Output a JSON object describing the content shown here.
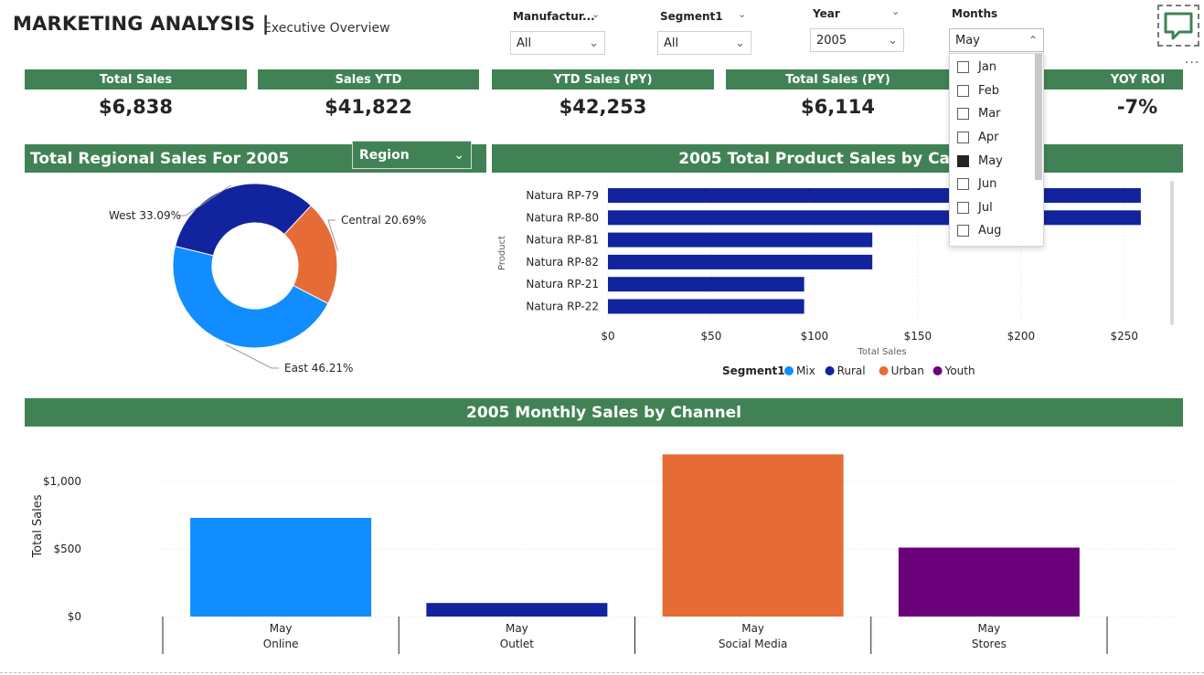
{
  "header": {
    "title": "MARKETING ANALYSIS |",
    "subtitle": "Executive Overview"
  },
  "slicers": {
    "manufacturer": {
      "label": "Manufactur...",
      "value": "All"
    },
    "segment": {
      "label": "Segment1",
      "value": "All"
    },
    "year": {
      "label": "Year",
      "value": "2005"
    },
    "months": {
      "label": "Months",
      "value": "May",
      "options": [
        {
          "label": "Jan",
          "checked": false
        },
        {
          "label": "Feb",
          "checked": false
        },
        {
          "label": "Mar",
          "checked": false
        },
        {
          "label": "Apr",
          "checked": false
        },
        {
          "label": "May",
          "checked": true
        },
        {
          "label": "Jun",
          "checked": false
        },
        {
          "label": "Jul",
          "checked": false
        },
        {
          "label": "Aug",
          "checked": false
        }
      ]
    }
  },
  "kpis": [
    {
      "label": "Total Sales",
      "value": "$6,838"
    },
    {
      "label": "Sales YTD",
      "value": "$41,822"
    },
    {
      "label": "YTD Sales (PY)",
      "value": "$42,253"
    },
    {
      "label": "Total Sales (PY)",
      "value": "$6,114"
    },
    {
      "label": "YOY ROI",
      "value": "-7%"
    }
  ],
  "regional": {
    "title": "Total Regional Sales For 2005",
    "dropdown": "Region"
  },
  "product": {
    "title": "2005 Total Product Sales by Cate"
  },
  "channel": {
    "title": "2005 Monthly Sales by Channel"
  },
  "more_options_label": "...",
  "colors": {
    "green": "#418255",
    "mix": "#118DFF",
    "rural": "#12239E",
    "urban": "#E66C37",
    "youth": "#6B007B"
  },
  "chart_data": [
    {
      "type": "pie",
      "labels": [
        "West",
        "Central",
        "East"
      ],
      "values": [
        33.09,
        20.69,
        46.21
      ],
      "data_labels": [
        "West 33.09%",
        "Central 20.69%",
        "East 46.21%"
      ],
      "colors": [
        "#12239E",
        "#E66C37",
        "#118DFF"
      ]
    },
    {
      "type": "bar",
      "orientation": "horizontal",
      "categories": [
        "Natura RP-79",
        "Natura RP-80",
        "Natura RP-81",
        "Natura RP-82",
        "Natura RP-21",
        "Natura RP-22"
      ],
      "values": [
        258,
        258,
        128,
        128,
        95,
        95
      ],
      "xlabel": "Total Sales",
      "ylabel": "Product",
      "xlim": [
        0,
        270
      ],
      "xticks": [
        "$0",
        "$50",
        "$100",
        "$150",
        "$200",
        "$250"
      ],
      "xtick_values": [
        0,
        50,
        100,
        150,
        200,
        250
      ],
      "legend_title": "Segment1",
      "legend": [
        {
          "name": "Mix",
          "color": "#118DFF"
        },
        {
          "name": "Rural",
          "color": "#12239E"
        },
        {
          "name": "Urban",
          "color": "#E66C37"
        },
        {
          "name": "Youth",
          "color": "#6B007B"
        }
      ],
      "color": "#12239E"
    },
    {
      "type": "bar",
      "categories": [
        "Online",
        "Outlet",
        "Social Media",
        "Stores"
      ],
      "month_label": "May",
      "values": [
        730,
        100,
        1200,
        510
      ],
      "colors": [
        "#118DFF",
        "#12239E",
        "#E66C37",
        "#6B007B"
      ],
      "ylabel": "Total Sales",
      "ylim": [
        0,
        1250
      ],
      "yticks": [
        "$0",
        "$500",
        "$1,000"
      ],
      "ytick_values": [
        0,
        500,
        1000
      ]
    }
  ]
}
